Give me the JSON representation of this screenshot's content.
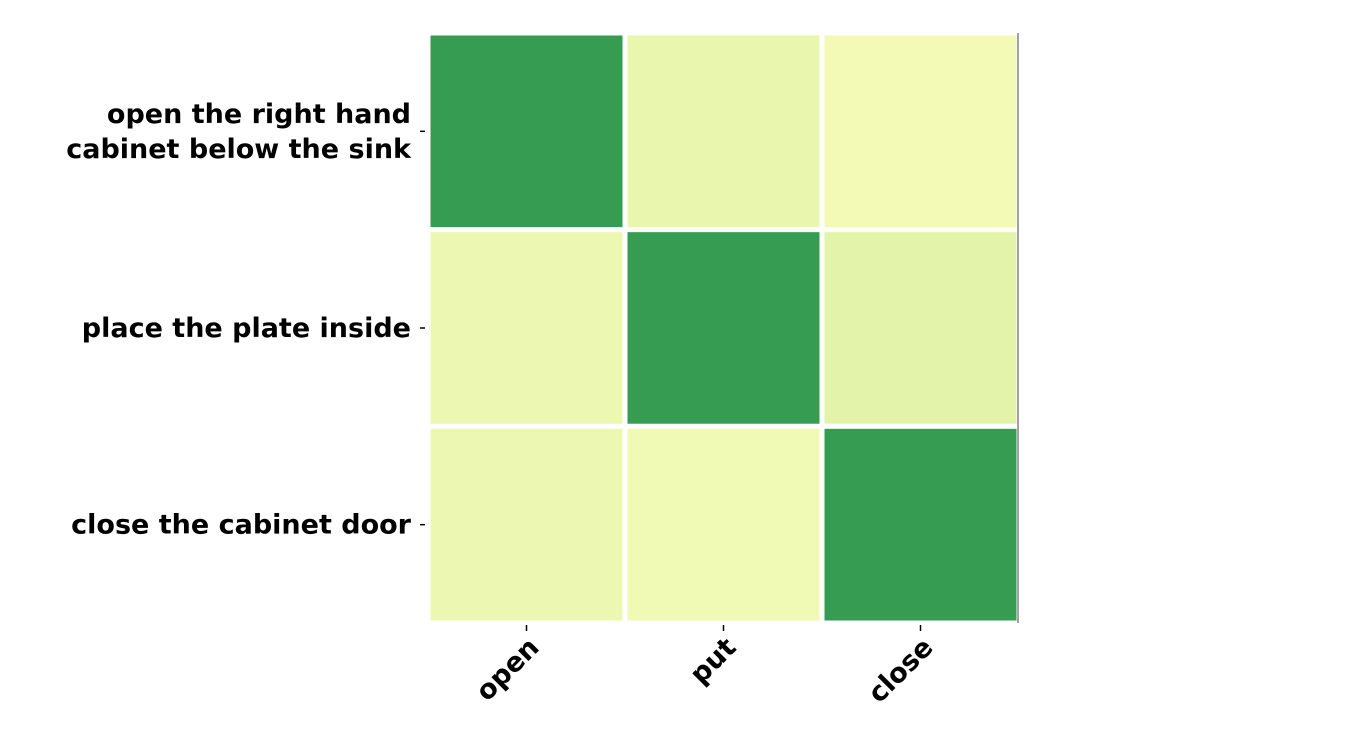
{
  "chart_data": {
    "type": "heatmap",
    "title": "",
    "xlabel": "",
    "ylabel": "",
    "x_categories": [
      "open",
      "put",
      "close"
    ],
    "y_categories": [
      [
        "open the right hand",
        "cabinet below the sink"
      ],
      [
        "place the plate inside"
      ],
      [
        "close the cabinet door"
      ]
    ],
    "values": [
      [
        0.9,
        0.1,
        0.03
      ],
      [
        0.07,
        0.9,
        0.13
      ],
      [
        0.07,
        0.04,
        0.9
      ]
    ],
    "colormap": "YlGn",
    "colors": {
      "low": "#f7fcb9",
      "mid": "#e0f3a8",
      "high": "#359c52",
      "cell_border": "#ffffff",
      "axis": "#000000"
    },
    "grid": false,
    "colorbar": false
  }
}
